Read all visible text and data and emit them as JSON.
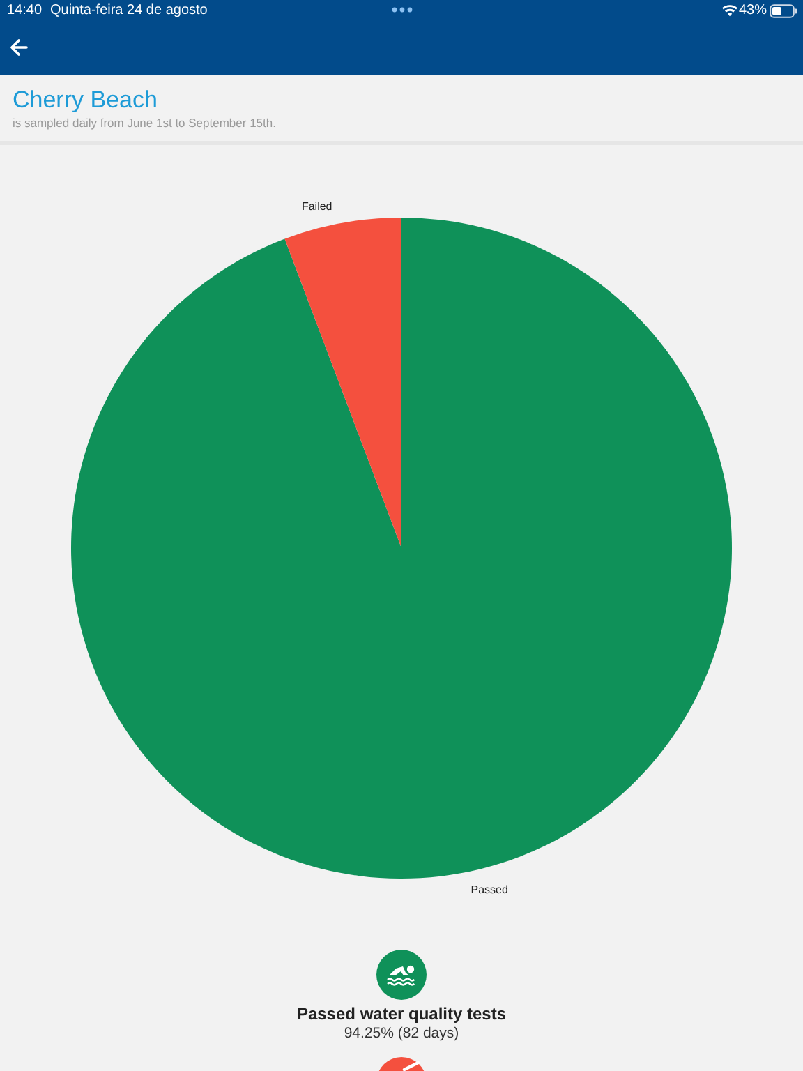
{
  "chart_data": {
    "type": "pie",
    "title": "Cherry Beach",
    "subtitle": "is sampled daily from June 1st to September 15th.",
    "categories": [
      "Passed",
      "Failed"
    ],
    "values": [
      94.25,
      5.75
    ],
    "colors": [
      "#0f9159",
      "#f4503e"
    ],
    "annotations": [
      "Passed water quality tests",
      "94.25% (82 days)",
      "14:40",
      "Quinta-feira 24 de agosto",
      "43%"
    ]
  }
}
